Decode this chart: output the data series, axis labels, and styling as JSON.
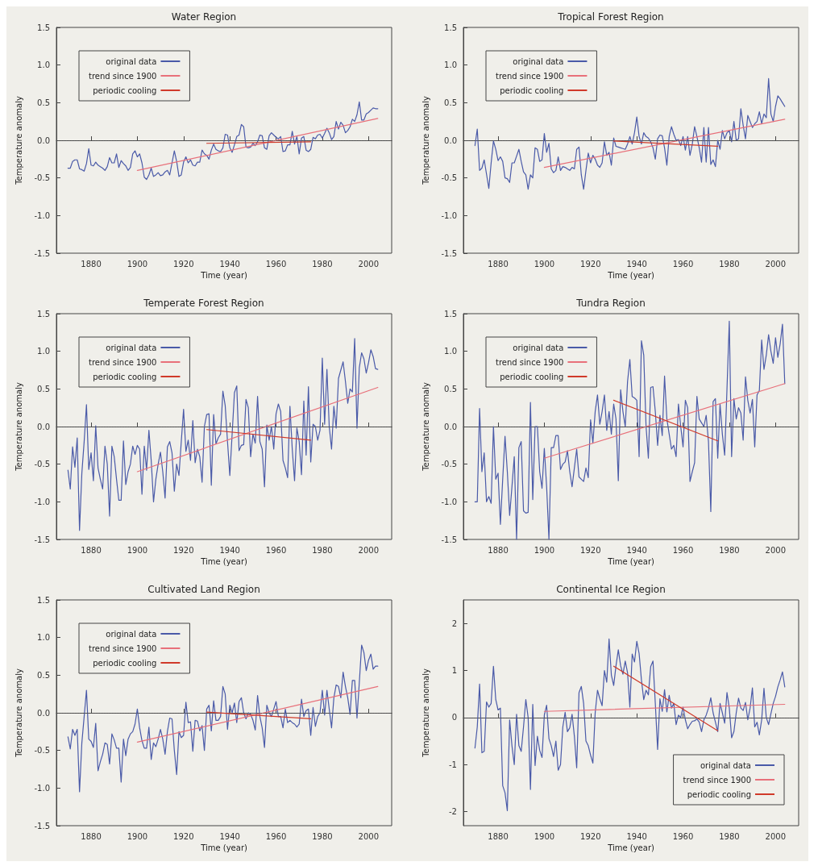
{
  "chart_data": [
    {
      "type": "line",
      "title": "Water Region",
      "xlabel": "Time (year)",
      "ylabel": "Temperature anomaly",
      "xlim": [
        1865,
        2010
      ],
      "xticks": [
        1880,
        1900,
        1920,
        1940,
        1960,
        1980,
        2000
      ],
      "ylim": [
        -1.5,
        1.5
      ],
      "yticks": [
        {
          "value": -1.5,
          "label": "-1.5"
        },
        {
          "value": -1,
          "label": "-1.0"
        },
        {
          "value": -0.5,
          "label": "-0.5"
        },
        {
          "value": 0,
          "label": "0.0"
        },
        {
          "value": 0.5,
          "label": "0.5"
        },
        {
          "value": 1,
          "label": "1.0"
        },
        {
          "value": 1.5,
          "label": "1.5"
        }
      ],
      "legend": "top left",
      "ref_lines": [
        {
          "axis": "y",
          "value": 0,
          "color": "#555555",
          "line_style": "dotted"
        }
      ],
      "x": [
        1870,
        1871,
        1872,
        1873,
        1874,
        1875,
        1876,
        1877,
        1878,
        1879,
        1880,
        1881,
        1882,
        1883,
        1884,
        1885,
        1886,
        1887,
        1888,
        1889,
        1890,
        1891,
        1892,
        1893,
        1894,
        1895,
        1896,
        1897,
        1898,
        1899,
        1900,
        1901,
        1902,
        1903,
        1904,
        1905,
        1906,
        1907,
        1908,
        1909,
        1910,
        1911,
        1912,
        1913,
        1914,
        1915,
        1916,
        1917,
        1918,
        1919,
        1920,
        1921,
        1922,
        1923,
        1924,
        1925,
        1926,
        1927,
        1928,
        1929,
        1930,
        1931,
        1932,
        1933,
        1934,
        1935,
        1936,
        1937,
        1938,
        1939,
        1940,
        1941,
        1942,
        1943,
        1944,
        1945,
        1946,
        1947,
        1948,
        1949,
        1950,
        1951,
        1952,
        1953,
        1954,
        1955,
        1956,
        1957,
        1958,
        1959,
        1960,
        1961,
        1962,
        1963,
        1964,
        1965,
        1966,
        1967,
        1968,
        1969,
        1970,
        1971,
        1972,
        1973,
        1974,
        1975,
        1976,
        1977,
        1978,
        1979,
        1980,
        1981,
        1982,
        1983,
        1984,
        1985,
        1986,
        1987,
        1988,
        1989,
        1990,
        1991,
        1992,
        1993,
        1994,
        1995,
        1996,
        1997,
        1998,
        1999,
        2000,
        2001,
        2002,
        2003,
        2004
      ],
      "series": [
        {
          "name": "original data",
          "color": "#4a5aa8",
          "values": [
            -0.37,
            -0.37,
            -0.28,
            -0.26,
            -0.26,
            -0.38,
            -0.39,
            -0.41,
            -0.31,
            -0.11,
            -0.33,
            -0.34,
            -0.29,
            -0.33,
            -0.35,
            -0.37,
            -0.4,
            -0.35,
            -0.23,
            -0.3,
            -0.3,
            -0.18,
            -0.36,
            -0.27,
            -0.31,
            -0.34,
            -0.4,
            -0.36,
            -0.18,
            -0.14,
            -0.22,
            -0.18,
            -0.3,
            -0.49,
            -0.52,
            -0.46,
            -0.37,
            -0.48,
            -0.46,
            -0.43,
            -0.47,
            -0.46,
            -0.42,
            -0.4,
            -0.46,
            -0.3,
            -0.14,
            -0.28,
            -0.48,
            -0.46,
            -0.29,
            -0.22,
            -0.3,
            -0.26,
            -0.33,
            -0.34,
            -0.29,
            -0.29,
            -0.13,
            -0.18,
            -0.2,
            -0.25,
            -0.13,
            -0.05,
            -0.12,
            -0.14,
            -0.15,
            -0.1,
            0.08,
            0.07,
            -0.1,
            -0.16,
            -0.06,
            0.05,
            0.07,
            0.21,
            0.18,
            -0.09,
            -0.1,
            -0.09,
            -0.04,
            -0.07,
            -0.02,
            0.07,
            0.06,
            -0.1,
            -0.12,
            0.06,
            0.1,
            0.07,
            0.04,
            0.02,
            0.05,
            -0.15,
            -0.14,
            -0.06,
            -0.06,
            0.12,
            -0.05,
            0.05,
            -0.18,
            0.03,
            0.05,
            -0.13,
            -0.15,
            -0.12,
            0.04,
            0.02,
            0.07,
            0.08,
            0.03,
            0.09,
            0.16,
            0.1,
            0.01,
            0.05,
            0.25,
            0.15,
            0.24,
            0.2,
            0.1,
            0.13,
            0.18,
            0.28,
            0.25,
            0.34,
            0.51,
            0.27,
            0.27,
            0.35,
            0.37,
            0.4,
            0.43,
            0.42,
            0.42
          ]
        },
        {
          "name": "trend since 1900",
          "color": "#e8707a",
          "x": [
            1900,
            2004
          ],
          "values": [
            -0.4,
            0.29
          ]
        },
        {
          "name": "periodic cooling",
          "color": "#d03a2a",
          "x": [
            1930,
            1975
          ],
          "values": [
            -0.04,
            -0.02
          ]
        }
      ]
    },
    {
      "type": "line",
      "title": "Tropical Forest Region",
      "xlabel": "Time (year)",
      "ylabel": "Temperature anomaly",
      "xlim": [
        1865,
        2010
      ],
      "xticks": [
        1880,
        1900,
        1920,
        1940,
        1960,
        1980,
        2000
      ],
      "ylim": [
        -1.5,
        1.5
      ],
      "yticks": [
        {
          "value": -1.5,
          "label": "-1.5"
        },
        {
          "value": -1,
          "label": "-1.0"
        },
        {
          "value": -0.5,
          "label": "-0.5"
        },
        {
          "value": 0,
          "label": "0.0"
        },
        {
          "value": 0.5,
          "label": "0.5"
        },
        {
          "value": 1,
          "label": "1.0"
        },
        {
          "value": 1.5,
          "label": "1.5"
        }
      ],
      "legend": "top left",
      "ref_lines": [
        {
          "axis": "y",
          "value": 0,
          "color": "#555555",
          "line_style": "dotted"
        }
      ],
      "x": [
        1870,
        1871,
        1872,
        1873,
        1874,
        1875,
        1876,
        1877,
        1878,
        1879,
        1880,
        1881,
        1882,
        1883,
        1884,
        1885,
        1886,
        1887,
        1888,
        1889,
        1890,
        1891,
        1892,
        1893,
        1894,
        1895,
        1896,
        1897,
        1898,
        1899,
        1900,
        1901,
        1902,
        1903,
        1904,
        1905,
        1906,
        1907,
        1908,
        1909,
        1910,
        1911,
        1912,
        1913,
        1914,
        1915,
        1916,
        1917,
        1918,
        1919,
        1920,
        1921,
        1922,
        1923,
        1924,
        1925,
        1926,
        1927,
        1928,
        1929,
        1930,
        1931,
        1932,
        1933,
        1934,
        1935,
        1936,
        1937,
        1938,
        1939,
        1940,
        1941,
        1942,
        1943,
        1944,
        1945,
        1946,
        1947,
        1948,
        1949,
        1950,
        1951,
        1952,
        1953,
        1954,
        1955,
        1956,
        1957,
        1958,
        1959,
        1960,
        1961,
        1962,
        1963,
        1964,
        1965,
        1966,
        1967,
        1968,
        1969,
        1970,
        1971,
        1972,
        1973,
        1974,
        1975,
        1976,
        1977,
        1978,
        1979,
        1980,
        1981,
        1982,
        1983,
        1984,
        1985,
        1986,
        1987,
        1988,
        1989,
        1990,
        1991,
        1992,
        1993,
        1994,
        1995,
        1996,
        1997,
        1998,
        1999,
        2000,
        2001,
        2002,
        2003,
        2004
      ],
      "series": [
        {
          "name": "original data",
          "color": "#4a5aa8",
          "values": [
            -0.07,
            0.15,
            -0.4,
            -0.37,
            -0.26,
            -0.45,
            -0.64,
            -0.3,
            -0.01,
            -0.12,
            -0.27,
            -0.22,
            -0.28,
            -0.5,
            -0.51,
            -0.56,
            -0.3,
            -0.3,
            -0.21,
            -0.12,
            -0.28,
            -0.42,
            -0.46,
            -0.65,
            -0.46,
            -0.5,
            -0.1,
            -0.12,
            -0.28,
            -0.26,
            0.09,
            -0.16,
            -0.04,
            -0.38,
            -0.43,
            -0.4,
            -0.22,
            -0.4,
            -0.35,
            -0.36,
            -0.38,
            -0.4,
            -0.36,
            -0.38,
            -0.12,
            -0.09,
            -0.46,
            -0.65,
            -0.4,
            -0.17,
            -0.3,
            -0.2,
            -0.25,
            -0.33,
            -0.36,
            -0.3,
            -0.02,
            -0.2,
            -0.16,
            -0.33,
            0.03,
            -0.08,
            -0.09,
            -0.1,
            -0.11,
            -0.12,
            -0.05,
            0.05,
            -0.05,
            0.1,
            0.31,
            0.05,
            -0.05,
            0.1,
            0.05,
            0.03,
            -0.02,
            -0.1,
            -0.25,
            0.02,
            0.07,
            0.06,
            -0.1,
            -0.33,
            0.05,
            0.18,
            0.08,
            0,
            0.01,
            -0.07,
            0.05,
            -0.13,
            0.05,
            -0.2,
            -0.05,
            0.18,
            0.05,
            -0.1,
            -0.29,
            0.17,
            -0.29,
            0.17,
            -0.32,
            -0.26,
            -0.35,
            0,
            -0.12,
            0.13,
            0.02,
            0.1,
            0.13,
            -0.02,
            0.25,
            0,
            0.02,
            0.42,
            0.2,
            0.02,
            0.33,
            0.25,
            0.17,
            0.22,
            0.25,
            0.38,
            0.22,
            0.35,
            0.3,
            0.82,
            0.35,
            0.25,
            0.45,
            0.59,
            0.55,
            0.5,
            0.45
          ]
        },
        {
          "name": "trend since 1900",
          "color": "#e8707a",
          "x": [
            1900,
            2004
          ],
          "values": [
            -0.36,
            0.28
          ]
        },
        {
          "name": "periodic cooling",
          "color": "#d03a2a",
          "x": [
            1930,
            1975
          ],
          "values": [
            -0.01,
            -0.08
          ]
        }
      ]
    },
    {
      "type": "line",
      "title": "Temperate Forest Region",
      "xlabel": "Time (year)",
      "ylabel": "Temperature anomaly",
      "xlim": [
        1865,
        2010
      ],
      "xticks": [
        1880,
        1900,
        1920,
        1940,
        1960,
        1980,
        2000
      ],
      "ylim": [
        -1.5,
        1.5
      ],
      "yticks": [
        {
          "value": -1.5,
          "label": "-1.5"
        },
        {
          "value": -1,
          "label": "-1.0"
        },
        {
          "value": -0.5,
          "label": "-0.5"
        },
        {
          "value": 0,
          "label": "0.0"
        },
        {
          "value": 0.5,
          "label": "0.5"
        },
        {
          "value": 1,
          "label": "1.0"
        },
        {
          "value": 1.5,
          "label": "1.5"
        }
      ],
      "legend": "top left",
      "ref_lines": [
        {
          "axis": "y",
          "value": 0,
          "color": "#555555",
          "line_style": "dotted"
        }
      ],
      "x": [
        1870,
        1871,
        1872,
        1873,
        1874,
        1875,
        1876,
        1877,
        1878,
        1879,
        1880,
        1881,
        1882,
        1883,
        1884,
        1885,
        1886,
        1887,
        1888,
        1889,
        1890,
        1891,
        1892,
        1893,
        1894,
        1895,
        1896,
        1897,
        1898,
        1899,
        1900,
        1901,
        1902,
        1903,
        1904,
        1905,
        1906,
        1907,
        1908,
        1909,
        1910,
        1911,
        1912,
        1913,
        1914,
        1915,
        1916,
        1917,
        1918,
        1919,
        1920,
        1921,
        1922,
        1923,
        1924,
        1925,
        1926,
        1927,
        1928,
        1929,
        1930,
        1931,
        1932,
        1933,
        1934,
        1935,
        1936,
        1937,
        1938,
        1939,
        1940,
        1941,
        1942,
        1943,
        1944,
        1945,
        1946,
        1947,
        1948,
        1949,
        1950,
        1951,
        1952,
        1953,
        1954,
        1955,
        1956,
        1957,
        1958,
        1959,
        1960,
        1961,
        1962,
        1963,
        1964,
        1965,
        1966,
        1967,
        1968,
        1969,
        1970,
        1971,
        1972,
        1973,
        1974,
        1975,
        1976,
        1977,
        1978,
        1979,
        1980,
        1981,
        1982,
        1983,
        1984,
        1985,
        1986,
        1987,
        1988,
        1989,
        1990,
        1991,
        1992,
        1993,
        1994,
        1995,
        1996,
        1997,
        1998,
        1999,
        2000,
        2001,
        2002,
        2003,
        2004
      ],
      "series": [
        {
          "name": "original data",
          "color": "#4a5aa8",
          "values": [
            -0.58,
            -0.83,
            -0.27,
            -0.54,
            -0.15,
            -1.38,
            -0.62,
            -0.2,
            0.29,
            -0.57,
            -0.35,
            -0.72,
            0.01,
            -0.55,
            -0.7,
            -0.83,
            -0.26,
            -0.5,
            -1.19,
            -0.26,
            -0.4,
            -0.7,
            -0.98,
            -0.98,
            -0.19,
            -0.77,
            -0.6,
            -0.5,
            -0.26,
            -0.37,
            -0.25,
            -0.3,
            -0.9,
            -0.26,
            -0.58,
            -0.05,
            -0.45,
            -1,
            -0.7,
            -0.5,
            -0.34,
            -0.6,
            -0.95,
            -0.27,
            -0.2,
            -0.35,
            -0.86,
            -0.5,
            -0.65,
            -0.2,
            0.23,
            -0.33,
            -0.18,
            -0.45,
            0.08,
            -0.48,
            -0.3,
            -0.4,
            -0.74,
            0,
            0.16,
            0.17,
            -0.78,
            0.16,
            -0.23,
            -0.15,
            -0.1,
            0.47,
            0.28,
            -0.2,
            -0.65,
            -0.1,
            0.45,
            0.54,
            -0.32,
            -0.25,
            -0.24,
            0.36,
            0.25,
            -0.4,
            -0.1,
            -0.22,
            0.4,
            -0.2,
            -0.3,
            -0.8,
            0.02,
            -0.18,
            0,
            -0.3,
            0.17,
            0.3,
            0.2,
            -0.45,
            -0.55,
            -0.68,
            0.27,
            -0.3,
            -0.72,
            -0.02,
            -0.2,
            -0.64,
            0.34,
            -0.38,
            0.53,
            -0.47,
            0.03,
            0,
            -0.18,
            -0.05,
            0.91,
            0.03,
            0.76,
            0,
            -0.3,
            0.27,
            -0.02,
            0.64,
            0.75,
            0.86,
            0.6,
            0.31,
            0.5,
            0.46,
            1.17,
            -0.02,
            0.78,
            0.98,
            0.9,
            0.71,
            0.85,
            1.02,
            0.93,
            0.77,
            0.76
          ]
        },
        {
          "name": "trend since 1900",
          "color": "#e8707a",
          "x": [
            1900,
            2004
          ],
          "values": [
            -0.6,
            0.52
          ]
        },
        {
          "name": "periodic cooling",
          "color": "#d03a2a",
          "x": [
            1930,
            1975
          ],
          "values": [
            -0.04,
            -0.18
          ]
        }
      ]
    },
    {
      "type": "line",
      "title": "Tundra Region",
      "xlabel": "Time (year)",
      "ylabel": "Temperature anomaly",
      "xlim": [
        1865,
        2010
      ],
      "xticks": [
        1880,
        1900,
        1920,
        1940,
        1960,
        1980,
        2000
      ],
      "ylim": [
        -1.5,
        1.5
      ],
      "yticks": [
        {
          "value": -1.5,
          "label": "-1.5"
        },
        {
          "value": -1,
          "label": "-1.0"
        },
        {
          "value": -0.5,
          "label": "-0.5"
        },
        {
          "value": 0,
          "label": "0.0"
        },
        {
          "value": 0.5,
          "label": "0.5"
        },
        {
          "value": 1,
          "label": "1.0"
        },
        {
          "value": 1.5,
          "label": "1.5"
        }
      ],
      "legend": "top left",
      "ref_lines": [
        {
          "axis": "y",
          "value": 0,
          "color": "#555555",
          "line_style": "dotted"
        }
      ],
      "x": [
        1870,
        1871,
        1872,
        1873,
        1874,
        1875,
        1876,
        1877,
        1878,
        1879,
        1880,
        1881,
        1882,
        1883,
        1884,
        1885,
        1886,
        1887,
        1888,
        1889,
        1890,
        1891,
        1892,
        1893,
        1894,
        1895,
        1896,
        1897,
        1898,
        1899,
        1900,
        1901,
        1902,
        1903,
        1904,
        1905,
        1906,
        1907,
        1908,
        1909,
        1910,
        1911,
        1912,
        1913,
        1914,
        1915,
        1916,
        1917,
        1918,
        1919,
        1920,
        1921,
        1922,
        1923,
        1924,
        1925,
        1926,
        1927,
        1928,
        1929,
        1930,
        1931,
        1932,
        1933,
        1934,
        1935,
        1936,
        1937,
        1938,
        1939,
        1940,
        1941,
        1942,
        1943,
        1944,
        1945,
        1946,
        1947,
        1948,
        1949,
        1950,
        1951,
        1952,
        1953,
        1954,
        1955,
        1956,
        1957,
        1958,
        1959,
        1960,
        1961,
        1962,
        1963,
        1964,
        1965,
        1966,
        1967,
        1968,
        1969,
        1970,
        1971,
        1972,
        1973,
        1974,
        1975,
        1976,
        1977,
        1978,
        1979,
        1980,
        1981,
        1982,
        1983,
        1984,
        1985,
        1986,
        1987,
        1988,
        1989,
        1990,
        1991,
        1992,
        1993,
        1994,
        1995,
        1996,
        1997,
        1998,
        1999,
        2000,
        2001,
        2002,
        2003,
        2004
      ],
      "series": [
        {
          "name": "original data",
          "color": "#4a5aa8",
          "values": [
            -1,
            -1,
            0.24,
            -0.6,
            -0.35,
            -1,
            -0.93,
            -1.02,
            0,
            -0.7,
            -0.62,
            -1.3,
            -0.7,
            -0.13,
            -0.6,
            -1.18,
            -0.8,
            -0.4,
            -1.5,
            -0.28,
            -0.2,
            -1.12,
            -1.15,
            -1.14,
            0.32,
            -0.97,
            0,
            0,
            -0.6,
            -0.82,
            -0.29,
            -0.8,
            -1.5,
            -0.28,
            -0.28,
            -0.12,
            -0.12,
            -0.57,
            -0.5,
            -0.47,
            -0.32,
            -0.6,
            -0.8,
            -0.55,
            -0.3,
            -0.67,
            -0.7,
            -0.73,
            -0.55,
            -0.68,
            0.09,
            -0.22,
            0.2,
            0.42,
            0.03,
            0.2,
            0.42,
            -0.05,
            0.2,
            -0.1,
            0.3,
            0.1,
            -0.72,
            0.49,
            0.2,
            0,
            0.6,
            0.89,
            0.4,
            0.38,
            0.35,
            -0.4,
            1.14,
            0.95,
            0,
            -0.42,
            0.52,
            0.53,
            0.2,
            -0.25,
            0.15,
            -0.12,
            0.67,
            0.1,
            -0.1,
            -0.3,
            -0.25,
            -0.4,
            0.3,
            0,
            -0.27,
            0.35,
            0.25,
            -0.73,
            -0.6,
            -0.48,
            0.4,
            0.1,
            0.05,
            0,
            0.15,
            -0.2,
            -1.13,
            0.33,
            0.37,
            -0.42,
            0.3,
            -0.1,
            -0.38,
            0.5,
            1.4,
            -0.4,
            0.37,
            0.1,
            0.25,
            0.18,
            -0.18,
            0.66,
            0.35,
            0.18,
            0.36,
            -0.27,
            0.42,
            0.48,
            1.15,
            0.76,
            0.95,
            1.22,
            1,
            0.84,
            1.18,
            0.92,
            1.1,
            1.36,
            0.57
          ]
        },
        {
          "name": "trend since 1900",
          "color": "#e8707a",
          "x": [
            1900,
            2004
          ],
          "values": [
            -0.42,
            0.57
          ]
        },
        {
          "name": "periodic cooling",
          "color": "#d03a2a",
          "x": [
            1930,
            1975
          ],
          "values": [
            0.35,
            -0.19
          ]
        }
      ]
    },
    {
      "type": "line",
      "title": "Cultivated Land Region",
      "xlabel": "Time (year)",
      "ylabel": "Temperature anomaly",
      "xlim": [
        1865,
        2010
      ],
      "xticks": [
        1880,
        1900,
        1920,
        1940,
        1960,
        1980,
        2000
      ],
      "ylim": [
        -1.5,
        1.5
      ],
      "yticks": [
        {
          "value": -1.5,
          "label": "-1.5"
        },
        {
          "value": -1,
          "label": "-1.0"
        },
        {
          "value": -0.5,
          "label": "-0.5"
        },
        {
          "value": 0,
          "label": "0.0"
        },
        {
          "value": 0.5,
          "label": "0.5"
        },
        {
          "value": 1,
          "label": "1.0"
        },
        {
          "value": 1.5,
          "label": "1.5"
        }
      ],
      "legend": "top left",
      "ref_lines": [
        {
          "axis": "y",
          "value": 0,
          "color": "#555555",
          "line_style": "dotted"
        }
      ],
      "x": [
        1870,
        1871,
        1872,
        1873,
        1874,
        1875,
        1876,
        1877,
        1878,
        1879,
        1880,
        1881,
        1882,
        1883,
        1884,
        1885,
        1886,
        1887,
        1888,
        1889,
        1890,
        1891,
        1892,
        1893,
        1894,
        1895,
        1896,
        1897,
        1898,
        1899,
        1900,
        1901,
        1902,
        1903,
        1904,
        1905,
        1906,
        1907,
        1908,
        1909,
        1910,
        1911,
        1912,
        1913,
        1914,
        1915,
        1916,
        1917,
        1918,
        1919,
        1920,
        1921,
        1922,
        1923,
        1924,
        1925,
        1926,
        1927,
        1928,
        1929,
        1930,
        1931,
        1932,
        1933,
        1934,
        1935,
        1936,
        1937,
        1938,
        1939,
        1940,
        1941,
        1942,
        1943,
        1944,
        1945,
        1946,
        1947,
        1948,
        1949,
        1950,
        1951,
        1952,
        1953,
        1954,
        1955,
        1956,
        1957,
        1958,
        1959,
        1960,
        1961,
        1962,
        1963,
        1964,
        1965,
        1966,
        1967,
        1968,
        1969,
        1970,
        1971,
        1972,
        1973,
        1974,
        1975,
        1976,
        1977,
        1978,
        1979,
        1980,
        1981,
        1982,
        1983,
        1984,
        1985,
        1986,
        1987,
        1988,
        1989,
        1990,
        1991,
        1992,
        1993,
        1994,
        1995,
        1996,
        1997,
        1998,
        1999,
        2000,
        2001,
        2002,
        2003,
        2004
      ],
      "series": [
        {
          "name": "original data",
          "color": "#4a5aa8",
          "values": [
            -0.32,
            -0.48,
            -0.22,
            -0.3,
            -0.22,
            -1.05,
            -0.4,
            -0.05,
            0.3,
            -0.35,
            -0.38,
            -0.46,
            -0.14,
            -0.77,
            -0.65,
            -0.55,
            -0.4,
            -0.42,
            -0.68,
            -0.28,
            -0.36,
            -0.47,
            -0.47,
            -0.92,
            -0.35,
            -0.57,
            -0.35,
            -0.28,
            -0.25,
            -0.15,
            0.05,
            -0.2,
            -0.37,
            -0.47,
            -0.47,
            -0.19,
            -0.62,
            -0.4,
            -0.45,
            -0.35,
            -0.22,
            -0.35,
            -0.55,
            -0.25,
            -0.07,
            -0.08,
            -0.5,
            -0.82,
            -0.25,
            -0.33,
            -0.3,
            0.14,
            -0.13,
            -0.12,
            -0.51,
            -0.1,
            -0.11,
            -0.24,
            -0.17,
            -0.5,
            0.05,
            0.1,
            -0.24,
            0.16,
            -0.1,
            -0.1,
            -0.05,
            0.35,
            0.25,
            -0.22,
            0.1,
            0,
            0.13,
            -0.13,
            0.15,
            0.2,
            0,
            -0.08,
            0,
            -0.02,
            -0.1,
            -0.23,
            0.23,
            -0.05,
            -0.2,
            -0.46,
            0.1,
            0,
            -0.05,
            0.05,
            0.15,
            -0.05,
            -0.05,
            -0.2,
            0.05,
            -0.13,
            -0.1,
            -0.13,
            -0.15,
            -0.19,
            -0.15,
            0.18,
            -0.05,
            0.03,
            0.05,
            -0.3,
            0.07,
            -0.18,
            -0.05,
            0,
            0.3,
            -0.03,
            0.3,
            0.05,
            -0.2,
            0.2,
            0.37,
            0.35,
            0.2,
            0.54,
            0.35,
            0.2,
            -0.02,
            0.43,
            0.43,
            -0.07,
            0.4,
            0.9,
            0.8,
            0.56,
            0.7,
            0.78,
            0.58,
            0.62,
            0.62
          ]
        },
        {
          "name": "trend since 1900",
          "color": "#e8707a",
          "x": [
            1900,
            2004
          ],
          "values": [
            -0.39,
            0.35
          ]
        },
        {
          "name": "periodic cooling",
          "color": "#d03a2a",
          "x": [
            1930,
            1975
          ],
          "values": [
            0.01,
            -0.08
          ]
        }
      ]
    },
    {
      "type": "line",
      "title": "Continental Ice Region",
      "xlabel": "Time (year)",
      "ylabel": "Temperature anomaly",
      "xlim": [
        1865,
        2010
      ],
      "xticks": [
        1880,
        1900,
        1920,
        1940,
        1960,
        1980,
        2000
      ],
      "ylim": [
        -2.3,
        2.5
      ],
      "yticks": [
        -2,
        -1,
        0,
        1,
        2
      ],
      "legend": "bottom right",
      "ref_lines": [
        {
          "axis": "y",
          "value": 0,
          "color": "#555555",
          "line_style": "dotted"
        }
      ],
      "x": [
        1870,
        1871,
        1872,
        1873,
        1874,
        1875,
        1876,
        1877,
        1878,
        1879,
        1880,
        1881,
        1882,
        1883,
        1884,
        1885,
        1886,
        1887,
        1888,
        1889,
        1890,
        1891,
        1892,
        1893,
        1894,
        1895,
        1896,
        1897,
        1898,
        1899,
        1900,
        1901,
        1902,
        1903,
        1904,
        1905,
        1906,
        1907,
        1908,
        1909,
        1910,
        1911,
        1912,
        1913,
        1914,
        1915,
        1916,
        1917,
        1918,
        1919,
        1920,
        1921,
        1922,
        1923,
        1924,
        1925,
        1926,
        1927,
        1928,
        1929,
        1930,
        1931,
        1932,
        1933,
        1934,
        1935,
        1936,
        1937,
        1938,
        1939,
        1940,
        1941,
        1942,
        1943,
        1944,
        1945,
        1946,
        1947,
        1948,
        1949,
        1950,
        1951,
        1952,
        1953,
        1954,
        1955,
        1956,
        1957,
        1958,
        1959,
        1960,
        1961,
        1962,
        1963,
        1964,
        1965,
        1966,
        1967,
        1968,
        1969,
        1970,
        1971,
        1972,
        1973,
        1974,
        1975,
        1976,
        1977,
        1978,
        1979,
        1980,
        1981,
        1982,
        1983,
        1984,
        1985,
        1986,
        1987,
        1988,
        1989,
        1990,
        1991,
        1992,
        1993,
        1994,
        1995,
        1996,
        1997,
        1998,
        1999,
        2000,
        2001,
        2002,
        2003,
        2004
      ],
      "series": [
        {
          "name": "original data",
          "color": "#4a5aa8",
          "values": [
            -0.65,
            -0.2,
            0.71,
            -0.75,
            -0.72,
            0.33,
            0.22,
            0.3,
            1.09,
            0.38,
            0.16,
            0.2,
            -1.45,
            -1.6,
            -1.98,
            -0.05,
            -0.6,
            -1,
            0.07,
            -0.6,
            -0.72,
            -0.2,
            0.38,
            0,
            -1.53,
            0.28,
            -1.02,
            -0.4,
            -0.7,
            -0.85,
            0.05,
            0.26,
            -0.45,
            -0.6,
            -0.83,
            -0.5,
            -1.12,
            -1,
            -0.2,
            0.11,
            -0.3,
            -0.22,
            0.07,
            -0.4,
            -1.07,
            0.53,
            0.66,
            0.3,
            -0.5,
            -0.6,
            -0.8,
            -0.97,
            0.1,
            0.58,
            0.4,
            0.25,
            1,
            0.75,
            1.67,
            0.9,
            0.68,
            1.1,
            1.44,
            1.1,
            0.92,
            1.2,
            0.95,
            0.22,
            1.35,
            1.18,
            1.62,
            1.36,
            0.8,
            0.38,
            0.58,
            0.48,
            1.08,
            1.2,
            0.3,
            -0.68,
            0.4,
            0.13,
            0.59,
            0.12,
            0.47,
            0.2,
            0.3,
            -0.15,
            0.05,
            0,
            0.22,
            -0.05,
            -0.24,
            -0.15,
            -0.08,
            -0.07,
            -0.03,
            -0.1,
            -0.3,
            -0.05,
            0.05,
            0.2,
            0.42,
            0.1,
            -0.1,
            -0.3,
            0.3,
            0.1,
            -0.12,
            0.53,
            0.2,
            -0.43,
            -0.3,
            0.1,
            0.41,
            0.2,
            0.15,
            0.32,
            -0.05,
            0.2,
            0.63,
            -0.2,
            -0.1,
            -0.37,
            -0.05,
            0.62,
            0,
            -0.15,
            0.08,
            0.3,
            0.45,
            0.65,
            0.8,
            0.97,
            0.65
          ]
        },
        {
          "name": "trend since 1900",
          "color": "#e8707a",
          "x": [
            1900,
            2004
          ],
          "values": [
            0.13,
            0.28
          ]
        },
        {
          "name": "periodic cooling",
          "color": "#d03a2a",
          "x": [
            1930,
            1975
          ],
          "values": [
            1.09,
            -0.28
          ]
        }
      ]
    }
  ]
}
